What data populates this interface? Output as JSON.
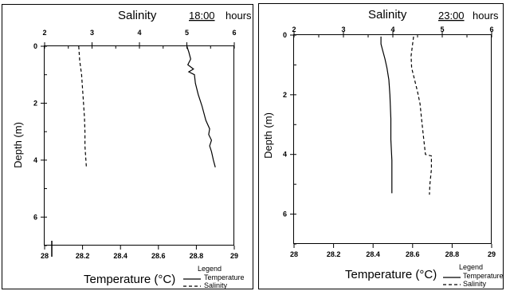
{
  "chart_data": [
    {
      "type": "line",
      "title": "Salinity",
      "time_label": "18:00",
      "time_unit": "hours",
      "top_axis": {
        "label": "Salinity",
        "range": [
          2,
          6
        ],
        "ticks": [
          "2",
          "3",
          "4",
          "5",
          "6"
        ]
      },
      "bottom_axis": {
        "label": "Temperature (°C)",
        "range": [
          28,
          29
        ],
        "ticks": [
          "28",
          "28.2",
          "28.4",
          "28.6",
          "28.8",
          "29"
        ]
      },
      "y_axis": {
        "label": "Depth (m)",
        "range": [
          0,
          7
        ],
        "inverted": true,
        "ticks": [
          "0",
          "2",
          "4",
          "6"
        ]
      },
      "legend": {
        "title": "Legend",
        "placement": "bottom-right",
        "entries": [
          "Temperature",
          "Salinity"
        ]
      },
      "series": [
        {
          "name": "Temperature",
          "style": "solid",
          "axis": "bottom",
          "points": [
            [
              28.75,
              0.0
            ],
            [
              28.76,
              0.2
            ],
            [
              28.77,
              0.45
            ],
            [
              28.755,
              0.65
            ],
            [
              28.785,
              0.8
            ],
            [
              28.76,
              0.9
            ],
            [
              28.79,
              1.0
            ],
            [
              28.795,
              1.3
            ],
            [
              28.81,
              1.7
            ],
            [
              28.83,
              2.1
            ],
            [
              28.85,
              2.6
            ],
            [
              28.87,
              2.9
            ],
            [
              28.865,
              3.1
            ],
            [
              28.88,
              3.3
            ],
            [
              28.87,
              3.5
            ],
            [
              28.88,
              3.7
            ],
            [
              28.89,
              4.0
            ],
            [
              28.9,
              4.25
            ]
          ]
        },
        {
          "name": "Salinity",
          "style": "dashed",
          "axis": "top",
          "points": [
            [
              2.72,
              0.0
            ],
            [
              2.74,
              0.5
            ],
            [
              2.78,
              1.0
            ],
            [
              2.8,
              1.5
            ],
            [
              2.82,
              2.0
            ],
            [
              2.84,
              2.5
            ],
            [
              2.85,
              3.0
            ],
            [
              2.85,
              3.5
            ],
            [
              2.87,
              4.0
            ],
            [
              2.88,
              4.25
            ]
          ]
        }
      ]
    },
    {
      "type": "line",
      "title": "Salinity",
      "time_label": "23:00",
      "time_unit": "hours",
      "top_axis": {
        "label": "Salinity",
        "range": [
          2,
          6
        ],
        "ticks": [
          "2",
          "3",
          "4",
          "5",
          "6"
        ]
      },
      "bottom_axis": {
        "label": "Temperature (°C)",
        "range": [
          28,
          29
        ],
        "ticks": [
          "28",
          "28.2",
          "28.4",
          "28.6",
          "28.8",
          "29"
        ]
      },
      "y_axis": {
        "label": "Depth (m)",
        "range": [
          0,
          7
        ],
        "inverted": true,
        "ticks": [
          "0",
          "2",
          "4",
          "6"
        ]
      },
      "legend": {
        "title": "Legend",
        "placement": "bottom-right",
        "entries": [
          "Temperature",
          "Salinity"
        ]
      },
      "series": [
        {
          "name": "Temperature",
          "style": "solid",
          "axis": "bottom",
          "points": [
            [
              28.44,
              0.05
            ],
            [
              28.44,
              0.3
            ],
            [
              28.45,
              0.55
            ],
            [
              28.46,
              0.8
            ],
            [
              28.47,
              1.1
            ],
            [
              28.48,
              1.5
            ],
            [
              28.485,
              2.0
            ],
            [
              28.49,
              2.8
            ],
            [
              28.49,
              3.5
            ],
            [
              28.495,
              4.2
            ],
            [
              28.495,
              5.0
            ],
            [
              28.495,
              5.3
            ]
          ]
        },
        {
          "name": "Salinity",
          "style": "dashed",
          "axis": "top",
          "points": [
            [
              4.42,
              0.05
            ],
            [
              4.4,
              0.3
            ],
            [
              4.37,
              0.7
            ],
            [
              4.38,
              1.1
            ],
            [
              4.44,
              1.5
            ],
            [
              4.5,
              1.9
            ],
            [
              4.55,
              2.3
            ],
            [
              4.58,
              2.8
            ],
            [
              4.62,
              3.4
            ],
            [
              4.66,
              4.0
            ],
            [
              4.78,
              4.05
            ],
            [
              4.78,
              4.5
            ],
            [
              4.75,
              5.0
            ],
            [
              4.74,
              5.35
            ]
          ]
        }
      ]
    }
  ]
}
